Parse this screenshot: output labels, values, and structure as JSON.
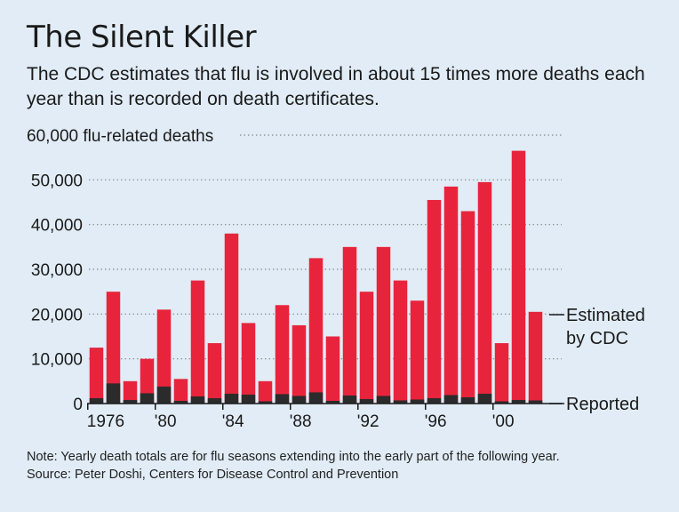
{
  "title": "The Silent Killer",
  "subtitle": "The CDC estimates that flu is involved in about 15 times more deaths each year than is recorded on death certificates.",
  "note": "Note: Yearly death totals are for flu seasons extending into the early part of the following year.",
  "source": "Source: Peter Doshi, Centers for Disease Control and Prevention",
  "colors": {
    "estimated": "#e8243c",
    "reported": "#2b2b2b",
    "background": "#e1ecf6",
    "grid": "#8a8a8a"
  },
  "chart_data": {
    "type": "bar",
    "stacked": true,
    "title": "The Silent Killer",
    "ylabel": "60,000 flu-related deaths",
    "xlabel": "",
    "ylim": [
      0,
      60000
    ],
    "yticks": [
      {
        "value": 0,
        "label": "0"
      },
      {
        "value": 10000,
        "label": "10,000"
      },
      {
        "value": 20000,
        "label": "20,000"
      },
      {
        "value": 30000,
        "label": "30,000"
      },
      {
        "value": 40000,
        "label": "40,000"
      },
      {
        "value": 50000,
        "label": "50,000"
      }
    ],
    "xtick_labels": [
      {
        "year": 1976,
        "label": "1976"
      },
      {
        "year": 1980,
        "label": "'80"
      },
      {
        "year": 1984,
        "label": "'84"
      },
      {
        "year": 1988,
        "label": "'88"
      },
      {
        "year": 1992,
        "label": "'92"
      },
      {
        "year": 1996,
        "label": "'96"
      },
      {
        "year": 2000,
        "label": "'00"
      }
    ],
    "categories": [
      1976,
      1977,
      1978,
      1979,
      1980,
      1981,
      1982,
      1983,
      1984,
      1985,
      1986,
      1987,
      1988,
      1989,
      1990,
      1991,
      1992,
      1993,
      1994,
      1995,
      1996,
      1997,
      1998,
      1999,
      2000,
      2001,
      2002
    ],
    "series": [
      {
        "name": "Reported",
        "values": [
          1200,
          4500,
          800,
          2300,
          3800,
          600,
          1600,
          1200,
          2200,
          2000,
          500,
          2100,
          1700,
          2500,
          600,
          1800,
          1000,
          1700,
          700,
          900,
          1200,
          1900,
          1400,
          2200,
          500,
          800,
          700
        ]
      },
      {
        "name": "Estimated by CDC",
        "values": [
          12500,
          25000,
          5000,
          10000,
          21000,
          5500,
          27500,
          13500,
          38000,
          18000,
          5000,
          22000,
          17500,
          32500,
          15000,
          35000,
          25000,
          35000,
          27500,
          23000,
          45500,
          48500,
          43000,
          49500,
          13500,
          56500,
          20500
        ]
      }
    ],
    "legend": [
      {
        "label_lines": [
          "Estimated",
          "by CDC"
        ],
        "series": "Estimated by CDC"
      },
      {
        "label_lines": [
          "Reported"
        ],
        "series": "Reported"
      }
    ]
  }
}
